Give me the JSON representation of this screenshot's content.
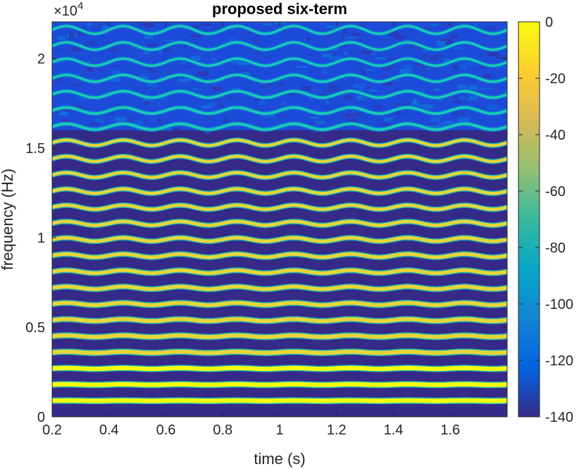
{
  "chart_data": {
    "type": "heatmap",
    "title": "proposed six-term",
    "xlabel": "time (s)",
    "ylabel": "frequency (Hz)",
    "y_exponent_base": "×10",
    "y_exponent_power": "4",
    "xlim": [
      0.2,
      1.8
    ],
    "ylim": [
      0,
      22050
    ],
    "x_ticks": [
      0.2,
      0.4,
      0.6,
      0.8,
      1.0,
      1.2,
      1.4,
      1.6
    ],
    "x_tick_labels": [
      "0.2",
      "0.4",
      "0.6",
      "0.8",
      "1",
      "1.2",
      "1.4",
      "1.6"
    ],
    "y_ticks": [
      0,
      5000,
      10000,
      15000,
      20000
    ],
    "y_tick_labels": [
      "0",
      "0.5",
      "1",
      "1.5",
      "2"
    ],
    "colorbar": {
      "range": [
        -140,
        0
      ],
      "ticks": [
        0,
        -20,
        -40,
        -60,
        -80,
        -100,
        -120,
        -140
      ],
      "tick_labels": [
        "0",
        "-20",
        "-40",
        "-60",
        "-80",
        "-100",
        "-120",
        "-140"
      ],
      "colormap": "parula"
    },
    "harmonics": {
      "fundamental_hz": 900,
      "count": 24,
      "modulation_depth_relative": 0.01,
      "modulation_period_s": 0.2,
      "peak_level_db": 0,
      "noise_floor_db": -140,
      "noisy_region_start_hz": 16000
    }
  },
  "colors": {
    "parula_dark": "#352a87",
    "parula_blue": "#0f5cdd",
    "parula_cyan": "#1ec9b8",
    "parula_yellow": "#f9fb0e",
    "axis": "#262626"
  }
}
